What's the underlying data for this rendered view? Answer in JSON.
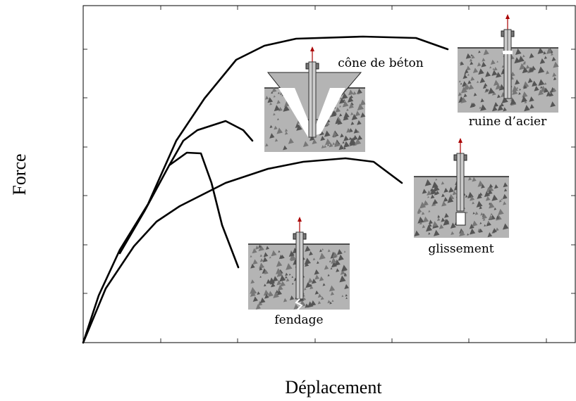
{
  "axes": {
    "x_label": "Déplacement",
    "y_label": "Force"
  },
  "modes": [
    {
      "label": "cône de béton"
    },
    {
      "label": "ruine d’acier"
    },
    {
      "label": "glissement"
    },
    {
      "label": "fendage"
    }
  ]
}
